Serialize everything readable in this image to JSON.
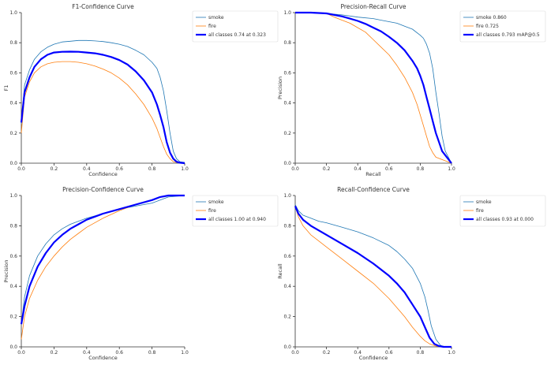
{
  "chart_data": [
    {
      "type": "line",
      "title": "F1-Confidence Curve",
      "xlabel": "Confidence",
      "ylabel": "F1",
      "xlim": [
        0,
        1
      ],
      "ylim": [
        0,
        1
      ],
      "xticks": [
        "0.0",
        "0.2",
        "0.4",
        "0.6",
        "0.8",
        "1.0"
      ],
      "yticks": [
        "0.0",
        "0.2",
        "0.4",
        "0.6",
        "0.8",
        "1.0"
      ],
      "grid": false,
      "legend": "right",
      "series": [
        {
          "name": "smoke",
          "color": "#1f77b4",
          "width": 0.8,
          "x": [
            0,
            0.02,
            0.05,
            0.08,
            0.12,
            0.16,
            0.2,
            0.25,
            0.3,
            0.35,
            0.4,
            0.45,
            0.5,
            0.55,
            0.6,
            0.65,
            0.7,
            0.75,
            0.8,
            0.83,
            0.85,
            0.87,
            0.89,
            0.91,
            0.93,
            0.95,
            0.97,
            1.0
          ],
          "y": [
            0.26,
            0.52,
            0.62,
            0.69,
            0.74,
            0.77,
            0.79,
            0.805,
            0.81,
            0.815,
            0.815,
            0.812,
            0.808,
            0.8,
            0.79,
            0.775,
            0.75,
            0.72,
            0.67,
            0.63,
            0.57,
            0.48,
            0.35,
            0.2,
            0.08,
            0.03,
            0.01,
            0.005
          ]
        },
        {
          "name": "fire",
          "color": "#ff7f0e",
          "width": 0.8,
          "x": [
            0,
            0.02,
            0.05,
            0.08,
            0.12,
            0.16,
            0.2,
            0.25,
            0.3,
            0.35,
            0.4,
            0.45,
            0.5,
            0.55,
            0.6,
            0.65,
            0.7,
            0.75,
            0.8,
            0.83,
            0.85,
            0.87,
            0.89,
            0.91,
            0.93,
            0.95,
            0.97,
            1.0
          ],
          "y": [
            0.2,
            0.44,
            0.54,
            0.6,
            0.64,
            0.66,
            0.67,
            0.675,
            0.675,
            0.67,
            0.66,
            0.645,
            0.625,
            0.6,
            0.565,
            0.52,
            0.46,
            0.39,
            0.3,
            0.23,
            0.17,
            0.11,
            0.06,
            0.03,
            0.01,
            0.005,
            0.002,
            0.0
          ]
        },
        {
          "name": "all classes 0.74 at 0.323",
          "color": "#0000ff",
          "width": 2.2,
          "x": [
            0,
            0.02,
            0.05,
            0.08,
            0.12,
            0.16,
            0.2,
            0.25,
            0.3,
            0.35,
            0.4,
            0.45,
            0.5,
            0.55,
            0.6,
            0.65,
            0.7,
            0.75,
            0.8,
            0.83,
            0.85,
            0.87,
            0.89,
            0.91,
            0.93,
            0.95,
            0.97,
            1.0
          ],
          "y": [
            0.27,
            0.47,
            0.57,
            0.64,
            0.69,
            0.72,
            0.735,
            0.74,
            0.741,
            0.74,
            0.735,
            0.73,
            0.72,
            0.705,
            0.685,
            0.655,
            0.61,
            0.55,
            0.47,
            0.39,
            0.32,
            0.24,
            0.14,
            0.07,
            0.03,
            0.01,
            0.003,
            0.0
          ]
        }
      ]
    },
    {
      "type": "line",
      "title": "Precision-Recall Curve",
      "xlabel": "Recall",
      "ylabel": "Precision",
      "xlim": [
        0,
        1
      ],
      "ylim": [
        0,
        1
      ],
      "xticks": [
        "0.0",
        "0.2",
        "0.4",
        "0.6",
        "0.8",
        "1.0"
      ],
      "yticks": [
        "0.0",
        "0.2",
        "0.4",
        "0.6",
        "0.8",
        "1.0"
      ],
      "grid": false,
      "legend": "right",
      "series": [
        {
          "name": "smoke 0.860",
          "color": "#1f77b4",
          "width": 0.8,
          "x": [
            0,
            0.1,
            0.2,
            0.3,
            0.4,
            0.5,
            0.55,
            0.6,
            0.65,
            0.7,
            0.75,
            0.8,
            0.82,
            0.84,
            0.86,
            0.88,
            0.9,
            0.92,
            0.94,
            0.96,
            1.0
          ],
          "y": [
            1,
            1,
            0.995,
            0.985,
            0.97,
            0.96,
            0.95,
            0.94,
            0.93,
            0.91,
            0.89,
            0.85,
            0.83,
            0.79,
            0.73,
            0.63,
            0.47,
            0.33,
            0.18,
            0.08,
            0.0
          ]
        },
        {
          "name": "fire 0.725",
          "color": "#ff7f0e",
          "width": 0.8,
          "x": [
            0,
            0.1,
            0.2,
            0.25,
            0.3,
            0.35,
            0.4,
            0.45,
            0.5,
            0.55,
            0.6,
            0.65,
            0.7,
            0.72,
            0.75,
            0.78,
            0.8,
            0.82,
            0.84,
            0.86,
            0.88,
            0.9,
            1.0
          ],
          "y": [
            1,
            1,
            0.995,
            0.97,
            0.95,
            0.93,
            0.9,
            0.87,
            0.82,
            0.77,
            0.72,
            0.65,
            0.57,
            0.53,
            0.47,
            0.39,
            0.32,
            0.25,
            0.18,
            0.11,
            0.07,
            0.04,
            0.0
          ]
        },
        {
          "name": "all classes 0.793 mAP@0.5",
          "color": "#0000ff",
          "width": 2.2,
          "x": [
            0,
            0.1,
            0.2,
            0.3,
            0.35,
            0.4,
            0.45,
            0.5,
            0.55,
            0.6,
            0.65,
            0.7,
            0.75,
            0.78,
            0.8,
            0.82,
            0.84,
            0.86,
            0.88,
            0.9,
            0.92,
            0.94,
            0.97,
            1.0
          ],
          "y": [
            1,
            1,
            0.995,
            0.975,
            0.96,
            0.945,
            0.925,
            0.9,
            0.875,
            0.84,
            0.8,
            0.75,
            0.68,
            0.63,
            0.58,
            0.52,
            0.44,
            0.36,
            0.28,
            0.2,
            0.14,
            0.08,
            0.04,
            0.0
          ]
        }
      ]
    },
    {
      "type": "line",
      "title": "Precision-Confidence Curve",
      "xlabel": "Confidence",
      "ylabel": "Precision",
      "xlim": [
        0,
        1
      ],
      "ylim": [
        0,
        1
      ],
      "xticks": [
        "0.0",
        "0.2",
        "0.4",
        "0.6",
        "0.8",
        "1.0"
      ],
      "yticks": [
        "0.0",
        "0.2",
        "0.4",
        "0.6",
        "0.8",
        "1.0"
      ],
      "grid": false,
      "legend": "right",
      "series": [
        {
          "name": "smoke",
          "color": "#1f77b4",
          "width": 0.8,
          "x": [
            0,
            0.02,
            0.05,
            0.1,
            0.15,
            0.2,
            0.25,
            0.3,
            0.35,
            0.4,
            0.5,
            0.6,
            0.7,
            0.8,
            0.85,
            0.9,
            1.0
          ],
          "y": [
            0.15,
            0.33,
            0.47,
            0.6,
            0.68,
            0.74,
            0.78,
            0.81,
            0.83,
            0.85,
            0.88,
            0.91,
            0.93,
            0.95,
            0.97,
            0.99,
            1.0
          ]
        },
        {
          "name": "fire",
          "color": "#ff7f0e",
          "width": 0.8,
          "x": [
            0,
            0.02,
            0.05,
            0.1,
            0.15,
            0.2,
            0.25,
            0.3,
            0.35,
            0.4,
            0.5,
            0.6,
            0.7,
            0.8,
            0.85,
            0.9,
            1.0
          ],
          "y": [
            0.05,
            0.2,
            0.32,
            0.44,
            0.53,
            0.6,
            0.66,
            0.71,
            0.75,
            0.79,
            0.85,
            0.9,
            0.94,
            0.97,
            0.99,
            1.0,
            1.0
          ]
        },
        {
          "name": "all classes 1.00 at 0.940",
          "color": "#0000ff",
          "width": 2.2,
          "x": [
            0,
            0.02,
            0.05,
            0.1,
            0.15,
            0.2,
            0.25,
            0.3,
            0.35,
            0.4,
            0.5,
            0.6,
            0.7,
            0.8,
            0.85,
            0.9,
            0.94,
            1.0
          ],
          "y": [
            0.15,
            0.27,
            0.4,
            0.53,
            0.62,
            0.69,
            0.74,
            0.78,
            0.81,
            0.84,
            0.88,
            0.91,
            0.94,
            0.97,
            0.99,
            1.0,
            1.0,
            1.0
          ]
        }
      ]
    },
    {
      "type": "line",
      "title": "Recall-Confidence Curve",
      "xlabel": "Confidence",
      "ylabel": "Recall",
      "xlim": [
        0,
        1
      ],
      "ylim": [
        0,
        1
      ],
      "xticks": [
        "0.0",
        "0.2",
        "0.4",
        "0.6",
        "0.8",
        "1.0"
      ],
      "yticks": [
        "0.0",
        "0.2",
        "0.4",
        "0.6",
        "0.8",
        "1.0"
      ],
      "grid": false,
      "legend": "right",
      "series": [
        {
          "name": "smoke",
          "color": "#1f77b4",
          "width": 0.8,
          "x": [
            0,
            0.02,
            0.05,
            0.1,
            0.15,
            0.2,
            0.3,
            0.4,
            0.5,
            0.6,
            0.65,
            0.7,
            0.75,
            0.8,
            0.83,
            0.85,
            0.87,
            0.9,
            0.93,
            0.96,
            1.0
          ],
          "y": [
            0.94,
            0.9,
            0.87,
            0.85,
            0.83,
            0.82,
            0.79,
            0.76,
            0.72,
            0.67,
            0.63,
            0.58,
            0.52,
            0.42,
            0.33,
            0.24,
            0.14,
            0.05,
            0.01,
            0.0,
            0.0
          ]
        },
        {
          "name": "fire",
          "color": "#ff7f0e",
          "width": 0.8,
          "x": [
            0,
            0.02,
            0.05,
            0.1,
            0.15,
            0.2,
            0.3,
            0.4,
            0.5,
            0.55,
            0.6,
            0.65,
            0.7,
            0.75,
            0.8,
            0.83,
            0.86,
            0.9,
            0.95,
            1.0
          ],
          "y": [
            0.93,
            0.86,
            0.8,
            0.74,
            0.7,
            0.66,
            0.58,
            0.5,
            0.42,
            0.37,
            0.32,
            0.26,
            0.2,
            0.13,
            0.07,
            0.04,
            0.02,
            0.005,
            0.0,
            0.0
          ]
        },
        {
          "name": "all classes 0.93 at 0.000",
          "color": "#0000ff",
          "width": 2.2,
          "x": [
            0,
            0.02,
            0.05,
            0.1,
            0.15,
            0.2,
            0.3,
            0.4,
            0.5,
            0.6,
            0.65,
            0.7,
            0.75,
            0.8,
            0.83,
            0.86,
            0.89,
            0.92,
            0.95,
            1.0
          ],
          "y": [
            0.93,
            0.88,
            0.84,
            0.8,
            0.77,
            0.74,
            0.68,
            0.62,
            0.55,
            0.47,
            0.42,
            0.36,
            0.28,
            0.2,
            0.13,
            0.06,
            0.02,
            0.005,
            0.0,
            0.0
          ]
        }
      ]
    }
  ]
}
